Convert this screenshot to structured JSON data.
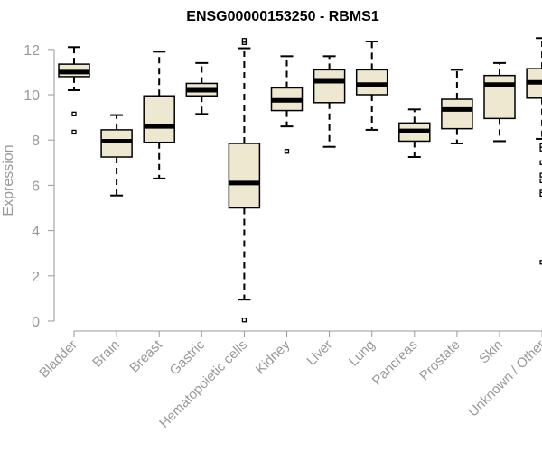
{
  "chart_data": {
    "type": "boxplot",
    "title": "ENSG00000153250 - RBMS1",
    "xlabel": "",
    "ylabel": "Expression",
    "ylim": [
      0,
      12.5
    ],
    "yticks": [
      0,
      2,
      4,
      6,
      8,
      10,
      12
    ],
    "grid": false,
    "legend": "none",
    "colors": {
      "box_fill": "#eee8d0",
      "stroke": "#000000",
      "axis": "#999999",
      "text": "#999999"
    },
    "categories": [
      "Bladder",
      "Brain",
      "Breast",
      "Gastric",
      "Hematopoietic cells",
      "Kidney",
      "Liver",
      "Lung",
      "Pancreas",
      "Prostate",
      "Skin",
      "Unknown / Other"
    ],
    "boxes": [
      {
        "category": "Bladder",
        "whisker_low": 10.2,
        "q1": 10.8,
        "median": 11.0,
        "q3": 11.35,
        "whisker_high": 12.1,
        "outliers": [
          9.15,
          8.35
        ]
      },
      {
        "category": "Brain",
        "whisker_low": 5.55,
        "q1": 7.25,
        "median": 7.95,
        "q3": 8.45,
        "whisker_high": 9.1,
        "outliers": []
      },
      {
        "category": "Breast",
        "whisker_low": 6.3,
        "q1": 7.9,
        "median": 8.6,
        "q3": 9.95,
        "whisker_high": 11.9,
        "outliers": []
      },
      {
        "category": "Gastric",
        "whisker_low": 9.15,
        "q1": 9.95,
        "median": 10.2,
        "q3": 10.5,
        "whisker_high": 11.4,
        "outliers": []
      },
      {
        "category": "Hematopoietic cells",
        "whisker_low": 0.95,
        "q1": 5.0,
        "median": 6.1,
        "q3": 7.85,
        "whisker_high": 12.05,
        "outliers": [
          0.05,
          12.3,
          12.4
        ]
      },
      {
        "category": "Kidney",
        "whisker_low": 8.6,
        "q1": 9.3,
        "median": 9.75,
        "q3": 10.3,
        "whisker_high": 11.7,
        "outliers": [
          7.5
        ]
      },
      {
        "category": "Liver",
        "whisker_low": 7.7,
        "q1": 9.65,
        "median": 10.6,
        "q3": 11.1,
        "whisker_high": 11.7,
        "outliers": []
      },
      {
        "category": "Lung",
        "whisker_low": 8.45,
        "q1": 10.0,
        "median": 10.45,
        "q3": 11.1,
        "whisker_high": 12.35,
        "outliers": []
      },
      {
        "category": "Pancreas",
        "whisker_low": 7.25,
        "q1": 7.95,
        "median": 8.4,
        "q3": 8.75,
        "whisker_high": 9.35,
        "outliers": []
      },
      {
        "category": "Prostate",
        "whisker_low": 7.85,
        "q1": 8.5,
        "median": 9.35,
        "q3": 9.8,
        "whisker_high": 11.1,
        "outliers": []
      },
      {
        "category": "Skin",
        "whisker_low": 7.95,
        "q1": 8.95,
        "median": 10.45,
        "q3": 10.85,
        "whisker_high": 11.4,
        "outliers": []
      },
      {
        "category": "Unknown / Other",
        "whisker_low": 8.05,
        "q1": 9.85,
        "median": 10.55,
        "q3": 11.15,
        "whisker_high": 12.5,
        "outliers": [
          7.75,
          7.6,
          7.0,
          6.45,
          6.2,
          5.7,
          5.6,
          2.6
        ]
      }
    ]
  }
}
